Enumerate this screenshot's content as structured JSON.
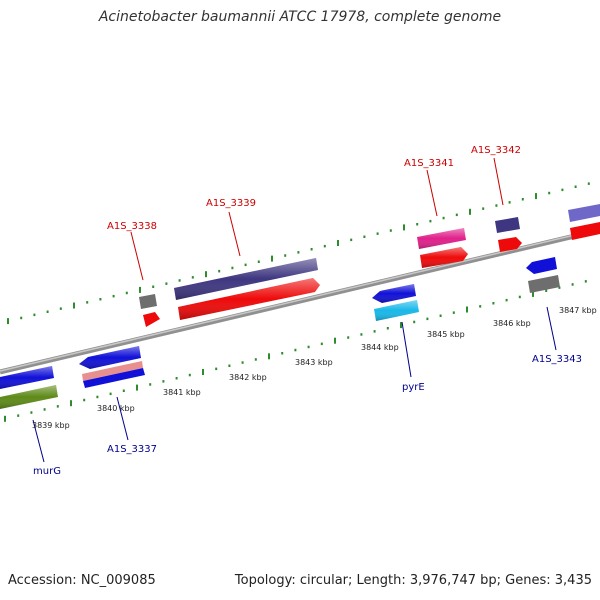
{
  "title": "Acinetobacter baumannii ATCC 17978, complete genome",
  "footer": {
    "accession": "Accession: NC_009085",
    "summary": "Topology: circular; Length: 3,976,747 bp; Genes: 3,435"
  },
  "colors": {
    "backbone": "#8a8a8a",
    "tick": "#2e8b2e",
    "forward_label": "#cc0000",
    "reverse_label": "#00008b",
    "gene_blue": "#1010d8",
    "gene_navy": "#3e3680",
    "gene_red": "#ee0a0a",
    "gene_gray": "#6e6e6e",
    "gene_pink": "#e0208a",
    "gene_cyan": "#18b8e8",
    "gene_green": "#5e8a18",
    "gene_salmon": "#e89090",
    "gene_lavender": "#7068c8"
  },
  "kbp_labels": [
    "3839 kbp",
    "3840 kbp",
    "3841 kbp",
    "3842 kbp",
    "3843 kbp",
    "3844 kbp",
    "3845 kbp",
    "3846 kbp",
    "3847 kbp"
  ],
  "forward_gene_labels": [
    "A1S_3338",
    "A1S_3339",
    "A1S_3341",
    "A1S_3342"
  ],
  "reverse_gene_labels": [
    "murG",
    "A1S_3337",
    "pyrE",
    "A1S_3343"
  ]
}
